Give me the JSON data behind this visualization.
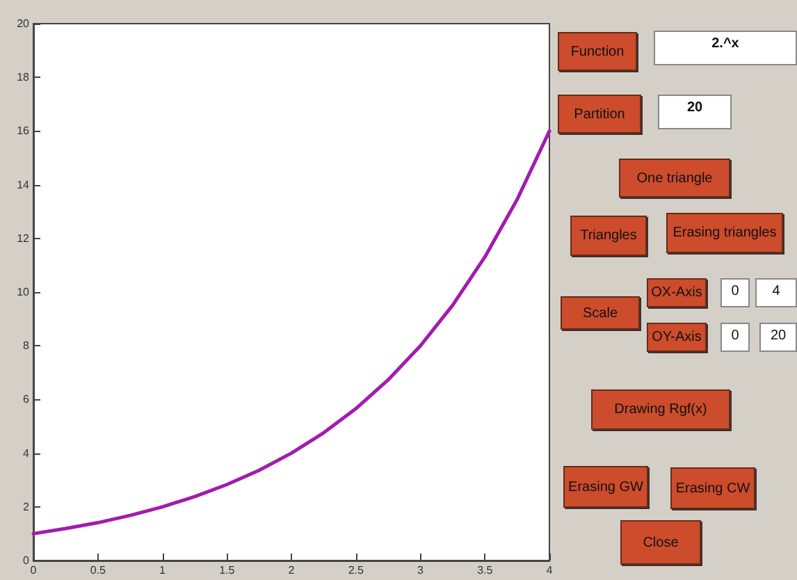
{
  "chart_data": [
    {
      "type": "line",
      "x": [
        0,
        0.25,
        0.5,
        0.75,
        1,
        1.25,
        1.5,
        1.75,
        2,
        2.25,
        2.5,
        2.75,
        3,
        3.25,
        3.5,
        3.75,
        4
      ],
      "series": [
        {
          "color": "#a21caf",
          "values": [
            1,
            1.19,
            1.41,
            1.68,
            2,
            2.38,
            2.83,
            3.36,
            4,
            4.76,
            5.66,
            6.73,
            8,
            9.51,
            11.31,
            13.45,
            16
          ]
        }
      ],
      "xlim": [
        0,
        4
      ],
      "xticks": [
        0,
        0.5,
        1,
        1.5,
        2,
        2.5,
        3,
        3.5,
        4
      ],
      "ylim": [
        0,
        20
      ],
      "yticks": [
        0,
        2,
        4,
        6,
        8,
        10,
        12,
        14,
        16,
        18,
        20
      ],
      "marker": "none",
      "line_style": "solid"
    },
    {
      "type": "other",
      "annotations": [
        "Function",
        "2.^x",
        "Partition",
        "20",
        "One triangle",
        "Triangles",
        "Erasing triangles",
        "Scale",
        "OX-Axis",
        "0",
        "4",
        "OY-Axis",
        "0",
        "20",
        "Drawing Rgf(x)",
        "Erasing GW",
        "Erasing CW",
        "Close"
      ]
    }
  ]
}
